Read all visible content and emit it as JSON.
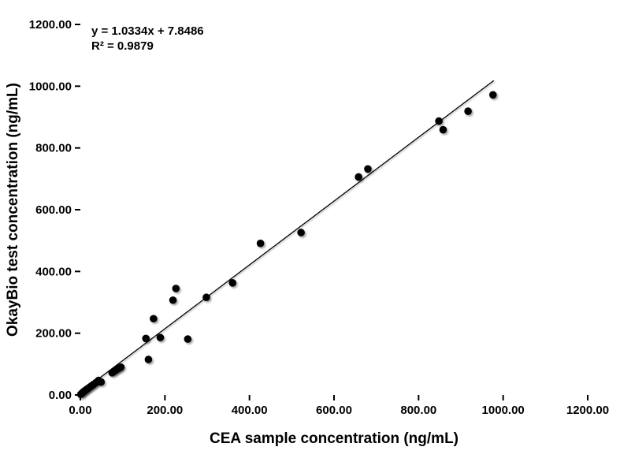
{
  "chart_data": {
    "type": "scatter",
    "title": "",
    "xlabel": "CEA sample concentration (ng/mL)",
    "ylabel": "OkayBio test concentration (ng/mL)",
    "xlim": [
      0,
      1200
    ],
    "ylim": [
      0,
      1200
    ],
    "x_tick_labels": [
      "0.00",
      "200.00",
      "400.00",
      "600.00",
      "800.00",
      "1000.00",
      "1200.00"
    ],
    "y_tick_labels": [
      "0.00",
      "200.00",
      "400.00",
      "600.00",
      "800.00",
      "1000.00",
      "1200.00"
    ],
    "grid": false,
    "legend": null,
    "background_color": "#ffffff",
    "marker_color": "#000000",
    "line_color": "#000000",
    "points": [
      [
        1,
        2
      ],
      [
        4,
        6
      ],
      [
        8,
        11
      ],
      [
        12,
        15
      ],
      [
        16,
        19
      ],
      [
        21,
        24
      ],
      [
        26,
        29
      ],
      [
        31,
        34
      ],
      [
        37,
        40
      ],
      [
        43,
        47
      ],
      [
        49,
        42
      ],
      [
        75,
        72
      ],
      [
        80,
        77
      ],
      [
        85,
        82
      ],
      [
        90,
        86
      ],
      [
        96,
        90
      ],
      [
        155,
        183
      ],
      [
        161,
        115
      ],
      [
        173,
        247
      ],
      [
        189,
        186
      ],
      [
        219,
        307
      ],
      [
        226,
        345
      ],
      [
        254,
        181
      ],
      [
        298,
        316
      ],
      [
        360,
        363
      ],
      [
        426,
        491
      ],
      [
        522,
        526
      ],
      [
        658,
        706
      ],
      [
        680,
        732
      ],
      [
        848,
        887
      ],
      [
        858,
        859
      ],
      [
        917,
        919
      ],
      [
        976,
        972
      ]
    ],
    "trendline": {
      "slope": 1.0334,
      "intercept": 7.8486,
      "x_start": 0,
      "x_end": 978,
      "equation_label": "y = 1.0334x + 7.8486",
      "r2_label": "R² = 0.9879"
    }
  }
}
